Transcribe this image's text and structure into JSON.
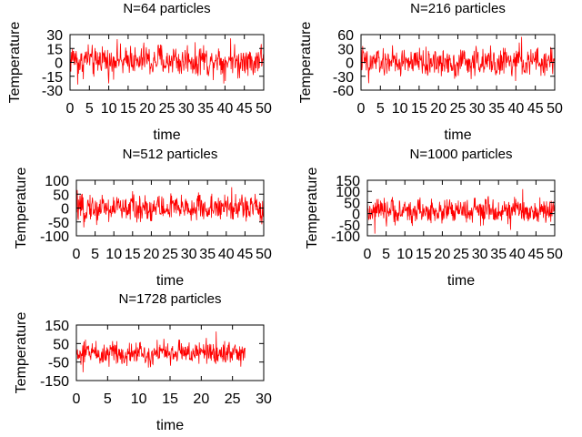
{
  "chart_data": [
    {
      "type": "line",
      "title": "N=64 particles",
      "xlabel": "time",
      "ylabel": "Temperature",
      "xlim": [
        0,
        50
      ],
      "ylim": [
        -30,
        30
      ],
      "xticks": [
        0,
        5,
        10,
        15,
        20,
        25,
        30,
        35,
        40,
        45,
        50
      ],
      "xtick_labels": [
        "0",
        "5",
        "10",
        "15",
        "20",
        "25",
        "30",
        "35",
        "40",
        "45",
        "50"
      ],
      "yticks": [
        30,
        15,
        0,
        -15,
        -30
      ],
      "ytick_labels": [
        "30",
        "15",
        "0",
        "-15",
        "-30"
      ],
      "color": "#ff0000",
      "grid": false,
      "series": [
        {
          "x_range": [
            0,
            50
          ],
          "mean": 2,
          "amplitude": 12,
          "peak": 26,
          "trough": -24
        }
      ]
    },
    {
      "type": "line",
      "title": "N=216 particles",
      "xlabel": "time",
      "ylabel": "Temperature",
      "xlim": [
        0,
        50
      ],
      "ylim": [
        -60,
        60
      ],
      "xticks": [
        0,
        5,
        10,
        15,
        20,
        25,
        30,
        35,
        40,
        45,
        50
      ],
      "xtick_labels": [
        "0",
        "5",
        "10",
        "15",
        "20",
        "25",
        "30",
        "35",
        "40",
        "45",
        "50"
      ],
      "yticks": [
        60,
        30,
        0,
        -30,
        -60
      ],
      "ytick_labels": [
        "60",
        "30",
        "0",
        "-30",
        "-60"
      ],
      "color": "#ff0000",
      "grid": false,
      "series": [
        {
          "x_range": [
            0,
            50
          ],
          "mean": 0,
          "amplitude": 22,
          "peak": 55,
          "trough": -45
        }
      ]
    },
    {
      "type": "line",
      "title": "N=512 particles",
      "xlabel": "time",
      "ylabel": "Temperature",
      "xlim": [
        0,
        50
      ],
      "ylim": [
        -100,
        100
      ],
      "xticks": [
        0,
        5,
        10,
        15,
        20,
        25,
        30,
        35,
        40,
        45,
        50
      ],
      "xtick_labels": [
        "0",
        "5",
        "10",
        "15",
        "20",
        "25",
        "30",
        "35",
        "40",
        "45",
        "50"
      ],
      "yticks": [
        100,
        50,
        0,
        -50,
        -100
      ],
      "ytick_labels": [
        "100",
        "50",
        "0",
        "-50",
        "-100"
      ],
      "color": "#ff0000",
      "grid": false,
      "series": [
        {
          "x_range": [
            0,
            50
          ],
          "mean": 0,
          "amplitude": 35,
          "peak": 75,
          "trough": -70
        }
      ]
    },
    {
      "type": "line",
      "title": "N=1000 particles",
      "xlabel": "time",
      "ylabel": "Temperature",
      "xlim": [
        0,
        50
      ],
      "ylim": [
        -100,
        150
      ],
      "xticks": [
        0,
        5,
        10,
        15,
        20,
        25,
        30,
        35,
        40,
        45,
        50
      ],
      "xtick_labels": [
        "0",
        "5",
        "10",
        "15",
        "20",
        "25",
        "30",
        "35",
        "40",
        "45",
        "50"
      ],
      "yticks": [
        150,
        100,
        50,
        0,
        -50,
        -100
      ],
      "ytick_labels": [
        "150",
        "100",
        "50",
        "0",
        "-50",
        "-100"
      ],
      "color": "#ff0000",
      "grid": false,
      "series": [
        {
          "x_range": [
            0,
            50
          ],
          "mean": 10,
          "amplitude": 40,
          "peak": 110,
          "trough": -90
        }
      ]
    },
    {
      "type": "line",
      "title": "N=1728 particles",
      "xlabel": "time",
      "ylabel": "Temperature",
      "xlim": [
        0,
        30
      ],
      "ylim": [
        -150,
        150
      ],
      "xticks": [
        0,
        5,
        10,
        15,
        20,
        25,
        30
      ],
      "xtick_labels": [
        "0",
        "5",
        "10",
        "15",
        "20",
        "25",
        "30"
      ],
      "yticks": [
        150,
        50,
        -50,
        -150
      ],
      "ytick_labels": [
        "150",
        "50",
        "-50",
        "-150"
      ],
      "color": "#ff0000",
      "grid": false,
      "series": [
        {
          "x_range": [
            0,
            27
          ],
          "mean": 0,
          "amplitude": 45,
          "peak": 115,
          "trough": -105
        }
      ]
    }
  ]
}
